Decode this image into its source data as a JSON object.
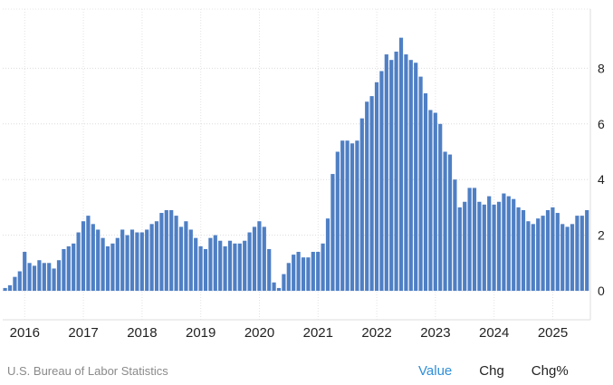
{
  "chart_data": {
    "type": "bar",
    "title": "",
    "xlabel": "",
    "ylabel": "",
    "start_month": "2015-09",
    "x_tick_labels": [
      "2016",
      "2017",
      "2018",
      "2019",
      "2020",
      "2021",
      "2022",
      "2023",
      "2024",
      "2025"
    ],
    "y_ticks": [
      0,
      2,
      4,
      6,
      8
    ],
    "ylim": [
      -1,
      9.6
    ],
    "grid": true,
    "y_axis_side": "right",
    "bar_color": "#4f7fc4",
    "values": [
      0.1,
      0.2,
      0.5,
      0.7,
      1.4,
      1.0,
      0.9,
      1.1,
      1.0,
      1.0,
      0.8,
      1.1,
      1.5,
      1.6,
      1.7,
      2.1,
      2.5,
      2.7,
      2.4,
      2.2,
      1.9,
      1.6,
      1.7,
      1.9,
      2.2,
      2.0,
      2.2,
      2.1,
      2.1,
      2.2,
      2.4,
      2.5,
      2.8,
      2.9,
      2.9,
      2.7,
      2.3,
      2.5,
      2.2,
      1.9,
      1.6,
      1.5,
      1.9,
      2.0,
      1.8,
      1.6,
      1.8,
      1.7,
      1.7,
      1.8,
      2.1,
      2.3,
      2.5,
      2.3,
      1.5,
      0.3,
      0.1,
      0.6,
      1.0,
      1.3,
      1.4,
      1.2,
      1.2,
      1.4,
      1.4,
      1.7,
      2.6,
      4.2,
      5.0,
      5.4,
      5.4,
      5.3,
      5.4,
      6.2,
      6.8,
      7.0,
      7.5,
      7.9,
      8.5,
      8.3,
      8.6,
      9.1,
      8.5,
      8.3,
      8.2,
      7.7,
      7.1,
      6.5,
      6.4,
      6.0,
      5.0,
      4.9,
      4.0,
      3.0,
      3.2,
      3.7,
      3.7,
      3.2,
      3.1,
      3.4,
      3.1,
      3.2,
      3.5,
      3.4,
      3.3,
      3.0,
      2.9,
      2.5,
      2.4,
      2.6,
      2.7,
      2.9,
      3.0,
      2.8,
      2.4,
      2.3,
      2.4,
      2.7,
      2.7,
      2.9
    ]
  },
  "footer": {
    "source": "U.S. Bureau of Labor Statistics",
    "tabs": [
      "Value",
      "Chg",
      "Chg%"
    ],
    "active_tab": "Value",
    "active_color": "#2f8fd8"
  }
}
